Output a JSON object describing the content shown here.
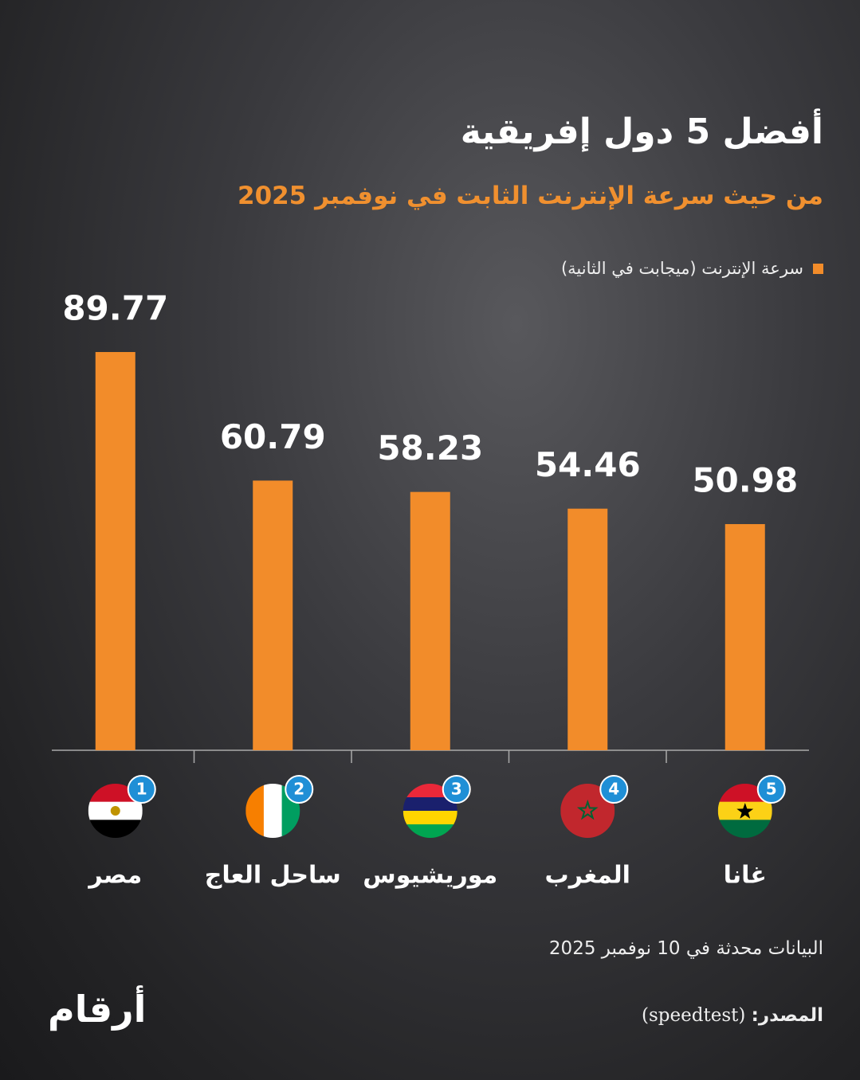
{
  "chart_data": {
    "type": "bar",
    "title": "أفضل 5 دول إفريقية",
    "subtitle": "من حيث سرعة الإنترنت الثابت في نوفمبر 2025",
    "categories": [
      "مصر",
      "ساحل العاج",
      "موريشيوس",
      "المغرب",
      "غانا"
    ],
    "ranks": [
      1,
      2,
      3,
      4,
      5
    ],
    "series": [
      {
        "name": "سرعة الإنترنت (ميجابت في الثانية)",
        "color": "#f28c2a",
        "values": [
          89.77,
          60.79,
          58.23,
          54.46,
          50.98
        ]
      }
    ],
    "ylim": [
      0,
      100
    ],
    "note": "البيانات محدثة في 10 نوفمبر 2025",
    "source_label": "المصدر:",
    "source": "(speedtest)",
    "logo": "أرقام"
  }
}
